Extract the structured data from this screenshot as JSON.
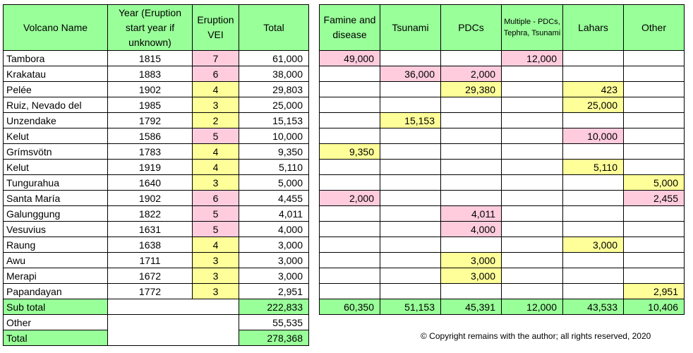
{
  "left_table": {
    "headers": [
      "Volcano Name",
      "Year (Eruption start year if unknown)",
      "Eruption VEI",
      "Total"
    ],
    "rows": [
      {
        "name": "Tambora",
        "year": "1815",
        "vei": "7",
        "total": "61,000",
        "vei_color": "pink"
      },
      {
        "name": "Krakatau",
        "year": "1883",
        "vei": "6",
        "total": "38,000",
        "vei_color": "pink"
      },
      {
        "name": "Pelée",
        "year": "1902",
        "vei": "4",
        "total": "29,803",
        "vei_color": "yellow"
      },
      {
        "name": "Ruiz, Nevado del",
        "year": "1985",
        "vei": "3",
        "total": "25,000",
        "vei_color": "yellow"
      },
      {
        "name": "Unzendake",
        "year": "1792",
        "vei": "2",
        "total": "15,153",
        "vei_color": "yellow"
      },
      {
        "name": "Kelut",
        "year": "1586",
        "vei": "5",
        "total": "10,000",
        "vei_color": "pink"
      },
      {
        "name": "Grímsvötn",
        "year": "1783",
        "vei": "4",
        "total": "9,350",
        "vei_color": "yellow"
      },
      {
        "name": "Kelut",
        "year": "1919",
        "vei": "4",
        "total": "5,110",
        "vei_color": "yellow"
      },
      {
        "name": "Tungurahua",
        "year": "1640",
        "vei": "3",
        "total": "5,000",
        "vei_color": "yellow"
      },
      {
        "name": "Santa María",
        "year": "1902",
        "vei": "6",
        "total": "4,455",
        "vei_color": "pink"
      },
      {
        "name": "Galunggung",
        "year": "1822",
        "vei": "5",
        "total": "4,011",
        "vei_color": "pink"
      },
      {
        "name": "Vesuvius",
        "year": "1631",
        "vei": "5",
        "total": "4,000",
        "vei_color": "pink"
      },
      {
        "name": "Raung",
        "year": "1638",
        "vei": "4",
        "total": "3,000",
        "vei_color": "yellow"
      },
      {
        "name": "Awu",
        "year": "1711",
        "vei": "3",
        "total": "3,000",
        "vei_color": "yellow"
      },
      {
        "name": "Merapi",
        "year": "1672",
        "vei": "3",
        "total": "3,000",
        "vei_color": "yellow"
      },
      {
        "name": "Papandayan",
        "year": "1772",
        "vei": "3",
        "total": "2,951",
        "vei_color": "yellow"
      }
    ],
    "subtotal": {
      "label": "Sub total",
      "total": "222,833"
    },
    "other": {
      "label": "Other",
      "total": "55,535"
    },
    "grand_total": {
      "label": "Total",
      "total": "278,368"
    }
  },
  "right_table": {
    "headers": [
      "Famine and disease",
      "Tsunami",
      "PDCs",
      "Multiple - PDCs, Tephra, Tsunami",
      "Lahars",
      "Other"
    ],
    "rows": [
      [
        "49,000",
        "",
        "",
        "12,000",
        "",
        ""
      ],
      [
        "",
        "36,000",
        "2,000",
        "",
        "",
        ""
      ],
      [
        "",
        "",
        "29,380",
        "",
        "423",
        ""
      ],
      [
        "",
        "",
        "",
        "",
        "25,000",
        ""
      ],
      [
        "",
        "15,153",
        "",
        "",
        "",
        ""
      ],
      [
        "",
        "",
        "",
        "",
        "10,000",
        ""
      ],
      [
        "9,350",
        "",
        "",
        "",
        "",
        ""
      ],
      [
        "",
        "",
        "",
        "",
        "5,110",
        ""
      ],
      [
        "",
        "",
        "",
        "",
        "",
        "5,000"
      ],
      [
        "2,000",
        "",
        "",
        "",
        "",
        "2,455"
      ],
      [
        "",
        "",
        "4,011",
        "",
        "",
        ""
      ],
      [
        "",
        "",
        "4,000",
        "",
        "",
        ""
      ],
      [
        "",
        "",
        "",
        "",
        "3,000",
        ""
      ],
      [
        "",
        "",
        "3,000",
        "",
        "",
        ""
      ],
      [
        "",
        "",
        "3,000",
        "",
        "",
        ""
      ],
      [
        "",
        "",
        "",
        "",
        "",
        "2,951"
      ]
    ],
    "colors": [
      [
        "pink",
        "",
        "",
        "pink",
        "",
        ""
      ],
      [
        "",
        "pink",
        "pink",
        "",
        "",
        ""
      ],
      [
        "",
        "",
        "yellow",
        "",
        "yellow",
        ""
      ],
      [
        "",
        "",
        "",
        "",
        "yellow",
        ""
      ],
      [
        "",
        "yellow",
        "",
        "",
        "",
        ""
      ],
      [
        "",
        "",
        "",
        "",
        "pink",
        ""
      ],
      [
        "yellow",
        "",
        "",
        "",
        "",
        ""
      ],
      [
        "",
        "",
        "",
        "",
        "yellow",
        ""
      ],
      [
        "",
        "",
        "",
        "",
        "",
        "yellow"
      ],
      [
        "pink",
        "",
        "",
        "",
        "",
        "pink"
      ],
      [
        "",
        "",
        "pink",
        "",
        "",
        ""
      ],
      [
        "",
        "",
        "pink",
        "",
        "",
        ""
      ],
      [
        "",
        "",
        "",
        "",
        "yellow",
        ""
      ],
      [
        "",
        "",
        "yellow",
        "",
        "",
        ""
      ],
      [
        "",
        "",
        "yellow",
        "",
        "",
        ""
      ],
      [
        "",
        "",
        "",
        "",
        "",
        "yellow"
      ]
    ],
    "subtotals": [
      "60,350",
      "51,153",
      "45,391",
      "12,000",
      "43,533",
      "10,406"
    ]
  },
  "colors": {
    "header_green": "#99ff99",
    "pink": "#ffccdd",
    "yellow": "#ffff99"
  },
  "copyright": "© Copyright remains with the author; all rights reserved, 2020"
}
